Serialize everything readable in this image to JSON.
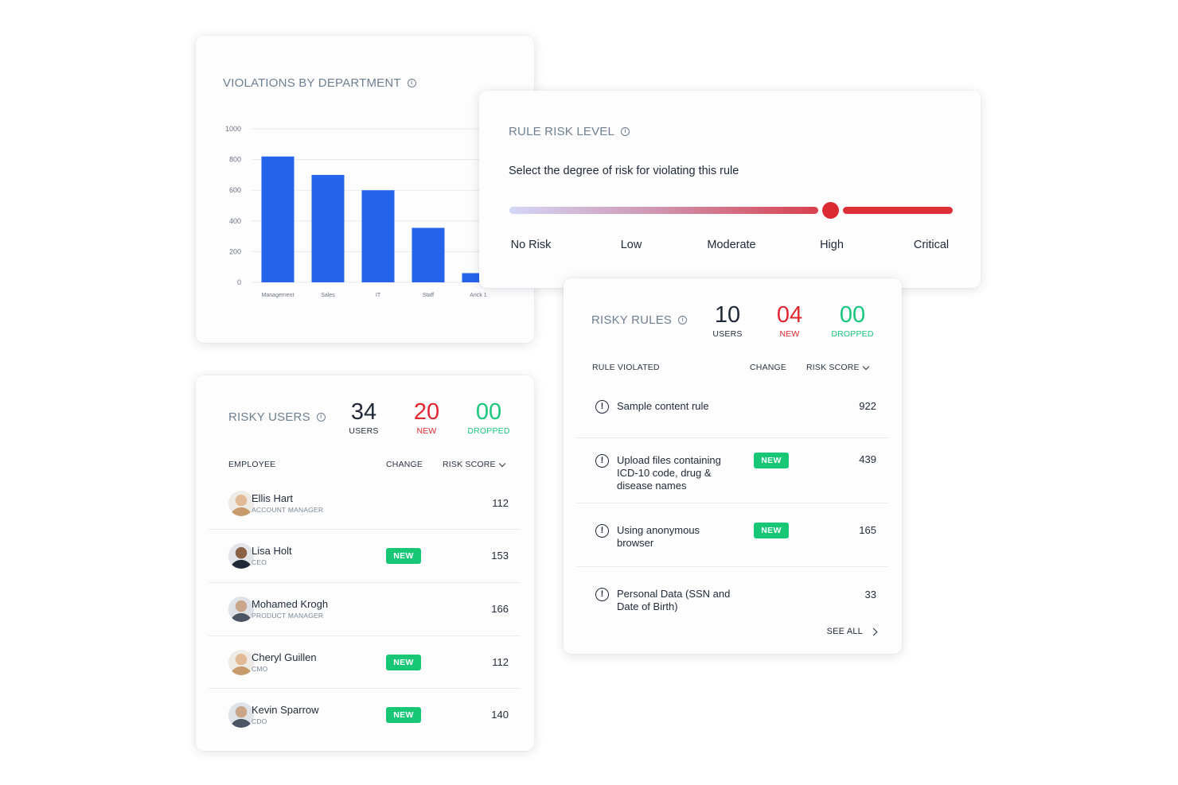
{
  "violations_chart": {
    "title": "VIOLATIONS BY DEPARTMENT",
    "info_icon": "info-circle-icon",
    "bar_color": "#2563eb",
    "chart_data": {
      "type": "bar",
      "title": "VIOLATIONS BY DEPARTMENT",
      "categories": [
        "Management",
        "Sales",
        "IT",
        "Staff",
        "Arick 1"
      ],
      "values": [
        820,
        700,
        600,
        355,
        60
      ],
      "ylim": [
        0,
        1000
      ],
      "yticks": [
        0,
        200,
        400,
        600,
        800,
        1000
      ],
      "grid": true,
      "xlabel": "",
      "ylabel": ""
    }
  },
  "rule_risk": {
    "title": "RULE RISK LEVEL",
    "prompt": "Select the degree of risk for violating this rule",
    "levels": [
      "No Risk",
      "Low",
      "Moderate",
      "High",
      "Critical"
    ],
    "selected": "High"
  },
  "risky_users": {
    "title": "RISKY USERS",
    "stats": {
      "users": {
        "value": "34",
        "label": "USERS"
      },
      "new": {
        "value": "20",
        "label": "NEW"
      },
      "dropped": {
        "value": "00",
        "label": "DROPPED"
      }
    },
    "columns": {
      "employee": "EMPLOYEE",
      "change": "CHANGE",
      "risk_score": "RISK SCORE"
    },
    "rows": [
      {
        "name": "Ellis Hart",
        "role": "ACCOUNT MANAGER",
        "badge": "",
        "score": "112"
      },
      {
        "name": "Lisa Holt",
        "role": "CEO",
        "badge": "NEW",
        "score": "153"
      },
      {
        "name": "Mohamed Krogh",
        "role": "PRODUCT MANAGER",
        "badge": "",
        "score": "166"
      },
      {
        "name": "Cheryl Guillen",
        "role": "CMO",
        "badge": "NEW",
        "score": "112"
      },
      {
        "name": "Kevin Sparrow",
        "role": "CDO",
        "badge": "NEW",
        "score": "140"
      }
    ]
  },
  "risky_rules": {
    "title": "RISKY RULES",
    "stats": {
      "users": {
        "value": "10",
        "label": "USERS"
      },
      "new": {
        "value": "04",
        "label": "NEW"
      },
      "dropped": {
        "value": "00",
        "label": "DROPPED"
      }
    },
    "columns": {
      "rule": "RULE VIOLATED",
      "change": "CHANGE",
      "risk_score": "RISK SCORE"
    },
    "rows": [
      {
        "text": "Sample content rule",
        "badge": "",
        "score": "922"
      },
      {
        "text": "Upload files containing ICD-10 code, drug & disease names",
        "badge": "NEW",
        "score": "439"
      },
      {
        "text": "Using anonymous browser",
        "badge": "NEW",
        "score": "165"
      },
      {
        "text": "Personal Data (SSN and Date of Birth)",
        "badge": "",
        "score": "33"
      }
    ],
    "see_all": "SEE ALL"
  }
}
